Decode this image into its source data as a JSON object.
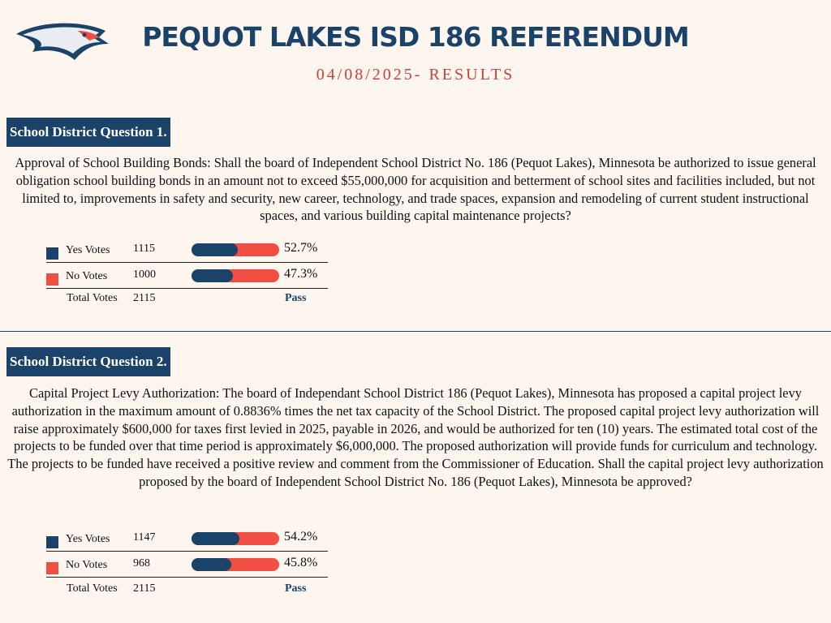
{
  "header": {
    "title": "PEQUOT LAKES ISD 186 REFERENDUM",
    "subtitle": "04/08/2025- RESULTS"
  },
  "questions": [
    {
      "heading": "School District Question 1.",
      "text": "Approval of School Building Bonds: Shall the board of Independent School District No. 186 (Pequot Lakes), Minnesota be authorized to issue general obligation school building bonds in an amount not to exceed $55,000,000 for acquisition and betterment of school sites and facilities included, but not limited to, improvements in safety and security, new career, technology, and trade spaces, expansion and remodeling of current student instructional spaces, and various building capital maintenance projects?",
      "rows": [
        {
          "label": "Yes Votes",
          "votes": 1115,
          "percent": 52.7,
          "percent_label": "52.7%",
          "color": "#1b4369"
        },
        {
          "label": "No Votes",
          "votes": 1000,
          "percent": 47.3,
          "percent_label": "47.3%",
          "color": "#f04e42"
        }
      ],
      "total_label": "Total Votes",
      "total": 2115,
      "result": "Pass"
    },
    {
      "heading": "School District Question 2.",
      "text": "Capital Project Levy Authorization: The board of Independant School District 186 (Pequot Lakes), Minnesota has proposed a capital project levy authorization in the maximum amount of 0.8836% times the net tax capacity of the School District. The proposed capital project levy authorization will raise approximately $600,000 for taxes first levied in 2025, payable in 2026, and would be authorized for ten (10) years. The estimated total cost of the projects to be funded over that time period is approximately $6,000,000. The proposed authorization will provide funds for curriculum and technology. The projects to be funded have received a positive review and comment from the Commissioner of Education. Shall the capital project levy authorization proposed by the board of Independent School District No. 186 (Pequot Lakes), Minnesota be approved?",
      "rows": [
        {
          "label": "Yes Votes",
          "votes": 1147,
          "percent": 54.2,
          "percent_label": "54.2%",
          "color": "#1b4369"
        },
        {
          "label": "No Votes",
          "votes": 968,
          "percent": 45.8,
          "percent_label": "45.8%",
          "color": "#f04e42"
        }
      ],
      "total_label": "Total Votes",
      "total": 2115,
      "result": "Pass"
    }
  ]
}
